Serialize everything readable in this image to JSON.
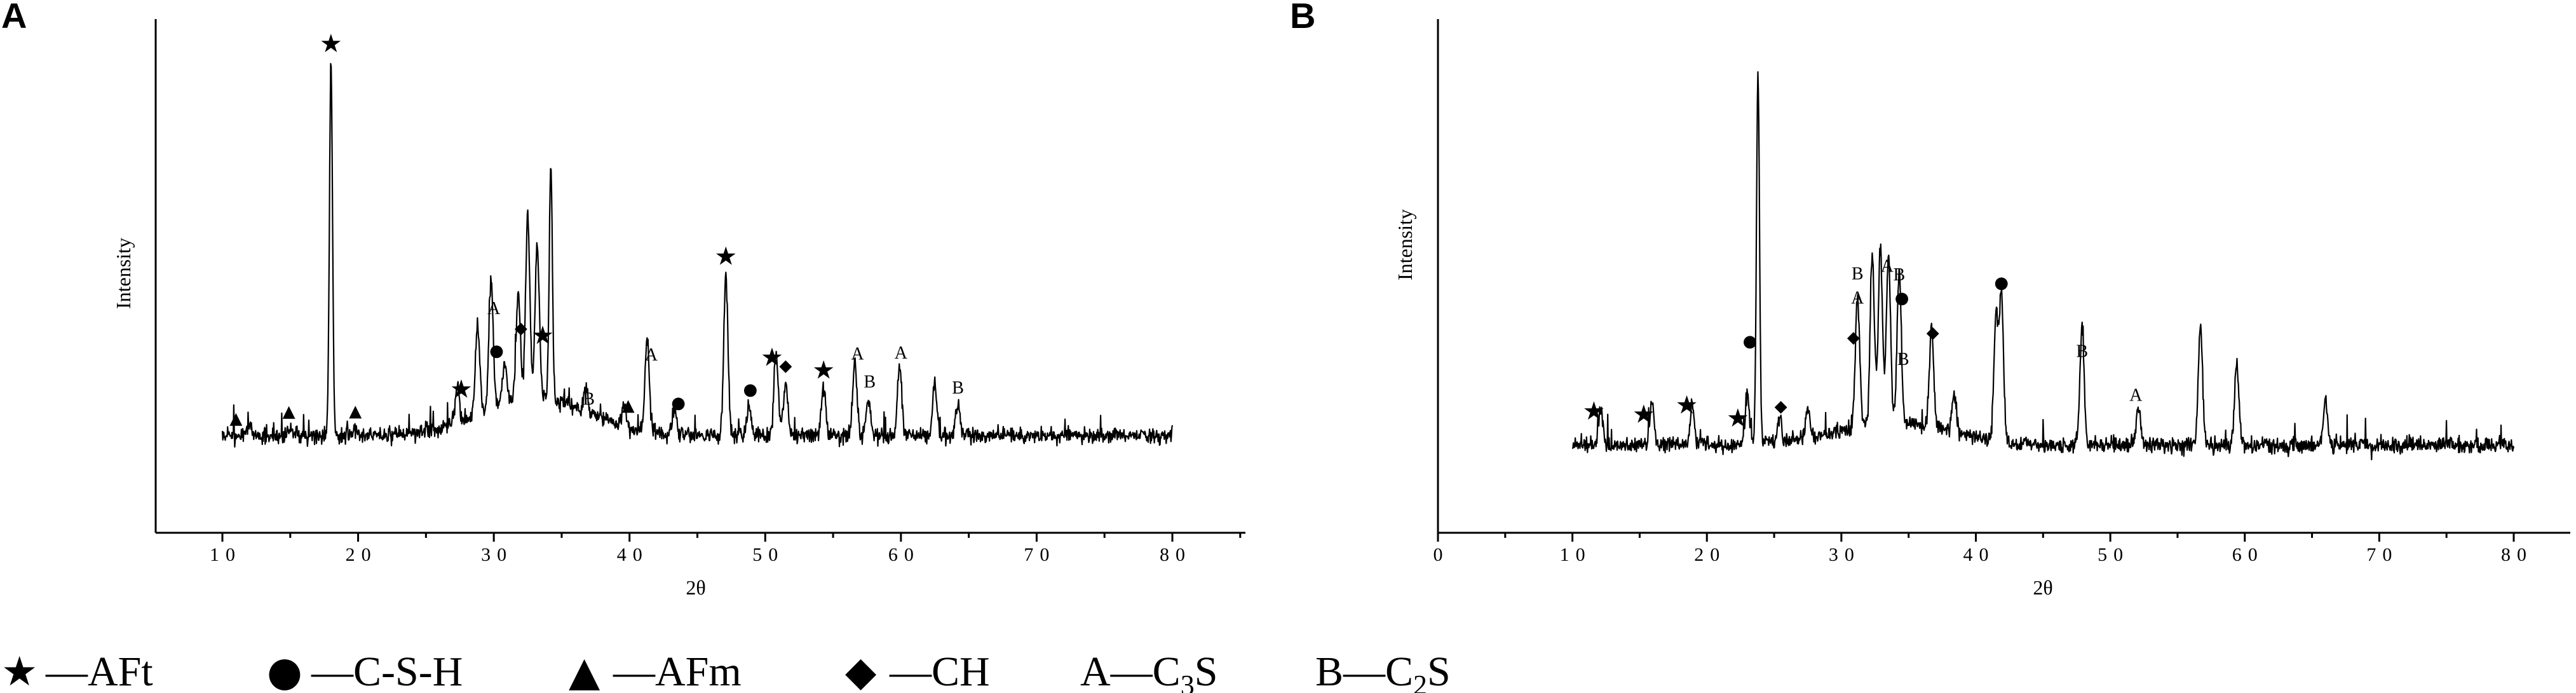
{
  "chart_data": [
    {
      "panel": "A",
      "type": "line",
      "xlabel": "2θ",
      "ylabel": "Intensity",
      "xlim": [
        5,
        85
      ],
      "xticks": [
        10,
        20,
        30,
        40,
        50,
        60,
        70,
        80
      ],
      "grid": false,
      "peaks": [
        {
          "x": 12.0,
          "y": 0.03
        },
        {
          "x": 15.0,
          "y": 0.02
        },
        {
          "x": 18.0,
          "y": 0.98
        },
        {
          "x": 19.8,
          "y": 0.02
        },
        {
          "x": 27.3,
          "y": 0.1
        },
        {
          "x": 28.8,
          "y": 0.24
        },
        {
          "x": 29.8,
          "y": 0.34
        },
        {
          "x": 30.8,
          "y": 0.1
        },
        {
          "x": 31.8,
          "y": 0.28
        },
        {
          "x": 32.5,
          "y": 0.48
        },
        {
          "x": 33.2,
          "y": 0.4
        },
        {
          "x": 34.2,
          "y": 0.62
        },
        {
          "x": 36.8,
          "y": 0.06
        },
        {
          "x": 39.6,
          "y": 0.05
        },
        {
          "x": 41.3,
          "y": 0.24
        },
        {
          "x": 43.3,
          "y": 0.06
        },
        {
          "x": 47.1,
          "y": 0.42
        },
        {
          "x": 48.8,
          "y": 0.08
        },
        {
          "x": 50.8,
          "y": 0.22
        },
        {
          "x": 51.5,
          "y": 0.14
        },
        {
          "x": 54.3,
          "y": 0.12
        },
        {
          "x": 56.6,
          "y": 0.2
        },
        {
          "x": 57.6,
          "y": 0.1
        },
        {
          "x": 59.9,
          "y": 0.18
        },
        {
          "x": 62.5,
          "y": 0.14
        },
        {
          "x": 64.2,
          "y": 0.08
        }
      ],
      "annotations": [
        {
          "label": "★",
          "x": 18.0
        },
        {
          "label": "★",
          "x": 27.6
        },
        {
          "label": "★",
          "x": 33.6
        },
        {
          "label": "★",
          "x": 47.1
        },
        {
          "label": "★",
          "x": 50.5
        },
        {
          "label": "★",
          "x": 54.3
        },
        {
          "label": "●",
          "x": 30.2
        },
        {
          "label": "●",
          "x": 43.6
        },
        {
          "label": "●",
          "x": 48.9
        },
        {
          "label": "▲",
          "x": 11.0
        },
        {
          "label": "▲",
          "x": 14.9
        },
        {
          "label": "▲",
          "x": 19.8
        },
        {
          "label": "▲",
          "x": 39.9
        },
        {
          "label": "◆",
          "x": 32.0
        },
        {
          "label": "◆",
          "x": 51.5
        },
        {
          "label": "A",
          "x": 30.0
        },
        {
          "label": "A",
          "x": 41.6
        },
        {
          "label": "A",
          "x": 56.8
        },
        {
          "label": "A",
          "x": 60.0
        },
        {
          "label": "B",
          "x": 37.0
        },
        {
          "label": "B",
          "x": 57.7
        },
        {
          "label": "B",
          "x": 64.2
        }
      ]
    },
    {
      "panel": "B",
      "type": "line",
      "xlabel": "2θ",
      "ylabel": "Intensity",
      "xlim": [
        0,
        85
      ],
      "xticks": [
        0,
        10,
        20,
        30,
        40,
        50,
        60,
        70,
        80
      ],
      "grid": false,
      "peaks": [
        {
          "x": 12.1,
          "y": 0.1
        },
        {
          "x": 15.9,
          "y": 0.12
        },
        {
          "x": 18.9,
          "y": 0.1
        },
        {
          "x": 23.0,
          "y": 0.13
        },
        {
          "x": 23.8,
          "y": 0.96
        },
        {
          "x": 25.4,
          "y": 0.06
        },
        {
          "x": 27.5,
          "y": 0.08
        },
        {
          "x": 31.2,
          "y": 0.34
        },
        {
          "x": 32.3,
          "y": 0.44
        },
        {
          "x": 32.9,
          "y": 0.46
        },
        {
          "x": 33.5,
          "y": 0.44
        },
        {
          "x": 34.3,
          "y": 0.4
        },
        {
          "x": 36.7,
          "y": 0.26
        },
        {
          "x": 38.4,
          "y": 0.1
        },
        {
          "x": 41.5,
          "y": 0.32
        },
        {
          "x": 41.9,
          "y": 0.38
        },
        {
          "x": 47.9,
          "y": 0.3
        },
        {
          "x": 52.1,
          "y": 0.1
        },
        {
          "x": 56.7,
          "y": 0.32
        },
        {
          "x": 59.4,
          "y": 0.22
        },
        {
          "x": 66.0,
          "y": 0.12
        }
      ],
      "annotations": [
        {
          "label": "★",
          "x": 11.6
        },
        {
          "label": "★",
          "x": 15.3
        },
        {
          "label": "★",
          "x": 18.5
        },
        {
          "label": "★",
          "x": 22.3
        },
        {
          "label": "●",
          "x": 23.2
        },
        {
          "label": "●",
          "x": 34.5
        },
        {
          "label": "●",
          "x": 41.9
        },
        {
          "label": "◆",
          "x": 25.5
        },
        {
          "label": "◆",
          "x": 30.9
        },
        {
          "label": "◆",
          "x": 36.8
        },
        {
          "label": "A",
          "x": 31.2
        },
        {
          "label": "A",
          "x": 33.4
        },
        {
          "label": "A",
          "x": 51.9
        },
        {
          "label": "B",
          "x": 31.2
        },
        {
          "label": "B",
          "x": 34.3
        },
        {
          "label": "B",
          "x": 34.6
        },
        {
          "label": "B",
          "x": 47.9
        }
      ]
    }
  ],
  "legend": [
    {
      "symbol": "★",
      "text": "—AFt"
    },
    {
      "symbol": "●",
      "text": "—C-S-H"
    },
    {
      "symbol": "▲",
      "text": "—AFm"
    },
    {
      "symbol": "◆",
      "text": "—CH"
    },
    {
      "symbol": "",
      "text": "A—C",
      "sub": "3",
      "tail": "S"
    },
    {
      "symbol": "",
      "text": "B—C",
      "sub": "2",
      "tail": "S"
    }
  ]
}
